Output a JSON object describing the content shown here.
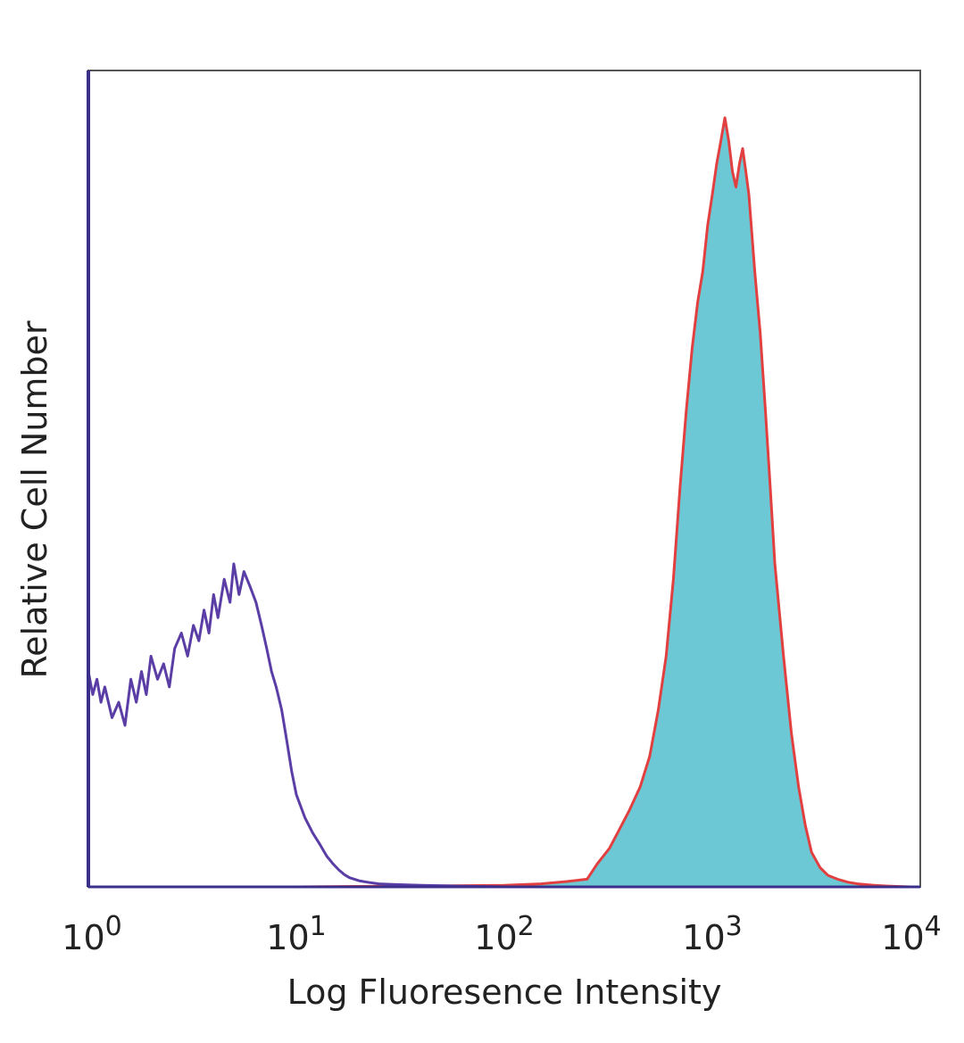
{
  "chart_data": {
    "type": "area",
    "title": "",
    "xlabel": "Log Fluoresence Intensity",
    "ylabel": "Relative Cell Number",
    "x_scale": "log",
    "xlim": [
      1,
      10000
    ],
    "ylim": [
      0,
      100
    ],
    "grid": false,
    "x_ticks": [
      {
        "value": 1,
        "base": "10",
        "exp": "0"
      },
      {
        "value": 10,
        "base": "10",
        "exp": "1"
      },
      {
        "value": 100,
        "base": "10",
        "exp": "2"
      },
      {
        "value": 1000,
        "base": "10",
        "exp": "3"
      },
      {
        "value": 10000,
        "base": "10",
        "exp": "4"
      }
    ],
    "series": [
      {
        "style": "outline",
        "color": "#5a3ea6",
        "x": [
          1.0,
          1.05,
          1.1,
          1.15,
          1.2,
          1.3,
          1.4,
          1.5,
          1.6,
          1.7,
          1.8,
          1.9,
          2.0,
          2.15,
          2.3,
          2.45,
          2.6,
          2.8,
          3.0,
          3.2,
          3.4,
          3.6,
          3.8,
          4.0,
          4.2,
          4.5,
          4.8,
          5.0,
          5.3,
          5.6,
          6.0,
          6.4,
          6.8,
          7.2,
          7.6,
          8.0,
          8.5,
          9.0,
          9.5,
          10.0,
          11.0,
          12.0,
          13.0,
          14.0,
          15.0,
          16.0,
          17.0,
          18.0,
          20.0,
          22.0,
          25.0,
          30.0,
          40.0,
          60.0,
          80.0,
          100.0
        ],
        "values": [
          28.0,
          25.0,
          27.0,
          24.0,
          26.0,
          22.0,
          24.0,
          21.0,
          27.0,
          24.0,
          28.0,
          25.0,
          30.0,
          27.0,
          29.0,
          26.0,
          31.0,
          33.0,
          30.0,
          34.0,
          32.0,
          36.0,
          33.0,
          38.0,
          35.0,
          40.0,
          37.0,
          42.0,
          38.0,
          41.0,
          39.0,
          37.0,
          34.0,
          31.0,
          28.0,
          26.0,
          23.0,
          19.0,
          15.0,
          12.0,
          9.0,
          7.0,
          5.5,
          4.0,
          3.0,
          2.2,
          1.6,
          1.2,
          0.8,
          0.6,
          0.4,
          0.3,
          0.2,
          0.1,
          0.05,
          0.0
        ]
      },
      {
        "style": "filled",
        "fill": "#6cc8d4",
        "color": "#e24040",
        "x": [
          1.0,
          10.0,
          100.0,
          150.0,
          200.0,
          250.0,
          280.0,
          320.0,
          350.0,
          400.0,
          450.0,
          500.0,
          550.0,
          600.0,
          650.0,
          700.0,
          750.0,
          800.0,
          850.0,
          900.0,
          950.0,
          1000.0,
          1050.0,
          1100.0,
          1150.0,
          1200.0,
          1250.0,
          1300.0,
          1350.0,
          1400.0,
          1450.0,
          1500.0,
          1550.0,
          1600.0,
          1700.0,
          1800.0,
          1900.0,
          2000.0,
          2200.0,
          2400.0,
          2600.0,
          2800.0,
          3000.0,
          3300.0,
          3600.0,
          4000.0,
          4500.0,
          5000.0,
          6000.0,
          7000.0,
          8000.0,
          9000.0,
          10000.0
        ],
        "values": [
          0.0,
          0.0,
          0.2,
          0.4,
          0.7,
          1.0,
          3.0,
          5.0,
          7.0,
          10.0,
          13.0,
          17.0,
          23.0,
          30.0,
          40.0,
          52.0,
          62.0,
          70.0,
          76.0,
          80.0,
          86.0,
          90.0,
          94.0,
          97.0,
          100.0,
          97.0,
          93.0,
          91.0,
          94.0,
          96.0,
          93.0,
          90.0,
          85.0,
          80.0,
          72.0,
          62.0,
          52.0,
          42.0,
          30.0,
          20.0,
          13.0,
          8.0,
          4.5,
          2.5,
          1.5,
          1.0,
          0.6,
          0.4,
          0.2,
          0.1,
          0.05,
          0.0,
          0.0
        ]
      }
    ]
  }
}
